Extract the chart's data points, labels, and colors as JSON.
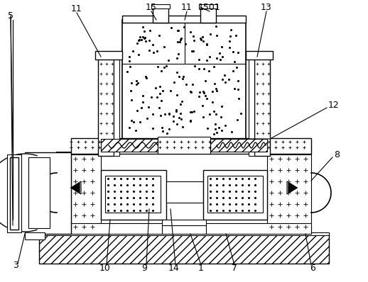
{
  "bg_color": "#ffffff",
  "line_color": "#000000",
  "figsize": [
    5.18,
    3.98
  ],
  "dpi": 100,
  "labels": [
    [
      "5",
      15,
      22,
      "center"
    ],
    [
      "11",
      108,
      12,
      "center"
    ],
    [
      "15",
      213,
      10,
      "center"
    ],
    [
      "11",
      263,
      10,
      "center"
    ],
    [
      "1501",
      295,
      10,
      "center"
    ],
    [
      "13",
      375,
      10,
      "center"
    ],
    [
      "12",
      462,
      148,
      "left"
    ],
    [
      "8",
      470,
      218,
      "left"
    ],
    [
      "3",
      22,
      375,
      "center"
    ],
    [
      "10",
      148,
      378,
      "center"
    ],
    [
      "9",
      203,
      378,
      "center"
    ],
    [
      "14",
      245,
      378,
      "center"
    ],
    [
      "1",
      283,
      378,
      "center"
    ],
    [
      "7",
      330,
      378,
      "center"
    ],
    [
      "6",
      440,
      378,
      "center"
    ]
  ]
}
